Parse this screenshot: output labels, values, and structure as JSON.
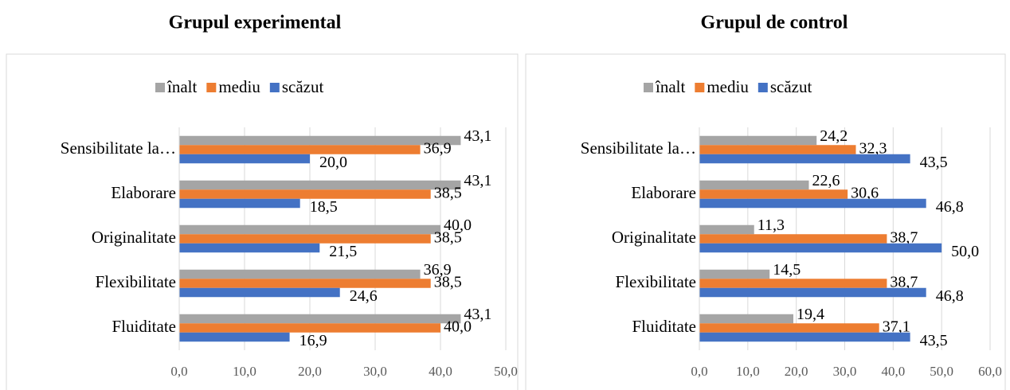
{
  "chart_data": [
    {
      "type": "hbar",
      "title": "Grupul experimental",
      "categories": [
        "Sensibilitate la…",
        "Elaborare",
        "Originalitate",
        "Flexibilitate",
        "Fluiditate"
      ],
      "series": [
        {
          "name": "înalt",
          "color": "#a5a5a5",
          "values": [
            43.1,
            43.1,
            40.0,
            36.9,
            43.1
          ],
          "value_labels": [
            "43,1",
            "43,1",
            "40,0",
            "36,9",
            "43,1"
          ]
        },
        {
          "name": "mediu",
          "color": "#ed7d31",
          "values": [
            36.9,
            38.5,
            38.5,
            38.5,
            40.0
          ],
          "value_labels": [
            "36,9",
            "38,5",
            "38,5",
            "38,5",
            "40,0"
          ]
        },
        {
          "name": "scăzut",
          "color": "#4472c4",
          "values": [
            20.0,
            18.5,
            21.5,
            24.6,
            16.9
          ],
          "value_labels": [
            "20,0",
            "18,5",
            "21,5",
            "24,6",
            "16,9"
          ]
        }
      ],
      "xlim": [
        0,
        50
      ],
      "xticks": [
        {
          "value": 0,
          "label": "0,0"
        },
        {
          "value": 10,
          "label": "10,0"
        },
        {
          "value": 20,
          "label": "20,0"
        },
        {
          "value": 30,
          "label": "30,0"
        },
        {
          "value": 40,
          "label": "40,0"
        },
        {
          "value": 50,
          "label": "50,0"
        }
      ],
      "grid": true,
      "legend": "top"
    },
    {
      "type": "hbar",
      "title": "Grupul de control",
      "categories": [
        "Sensibilitate la…",
        "Elaborare",
        "Originalitate",
        "Flexibilitate",
        "Fluiditate"
      ],
      "series": [
        {
          "name": "înalt",
          "color": "#a5a5a5",
          "values": [
            24.2,
            22.6,
            11.3,
            14.5,
            19.4
          ],
          "value_labels": [
            "24,2",
            "22,6",
            "11,3",
            "14,5",
            "19,4"
          ]
        },
        {
          "name": "mediu",
          "color": "#ed7d31",
          "values": [
            32.3,
            30.6,
            38.7,
            38.7,
            37.1
          ],
          "value_labels": [
            "32,3",
            "30,6",
            "38,7",
            "38,7",
            "37,1"
          ]
        },
        {
          "name": "scăzut",
          "color": "#4472c4",
          "values": [
            43.5,
            46.8,
            50.0,
            46.8,
            43.5
          ],
          "value_labels": [
            "43,5",
            "46,8",
            "50,0",
            "46,8",
            "43,5"
          ]
        }
      ],
      "xlim": [
        0,
        60
      ],
      "xticks": [
        {
          "value": 0,
          "label": "0,0"
        },
        {
          "value": 10,
          "label": "10,0"
        },
        {
          "value": 20,
          "label": "20,0"
        },
        {
          "value": 30,
          "label": "30,0"
        },
        {
          "value": 40,
          "label": "40,0"
        },
        {
          "value": 50,
          "label": "50,0"
        },
        {
          "value": 60,
          "label": "60,0"
        }
      ],
      "grid": true,
      "legend": "top"
    }
  ]
}
